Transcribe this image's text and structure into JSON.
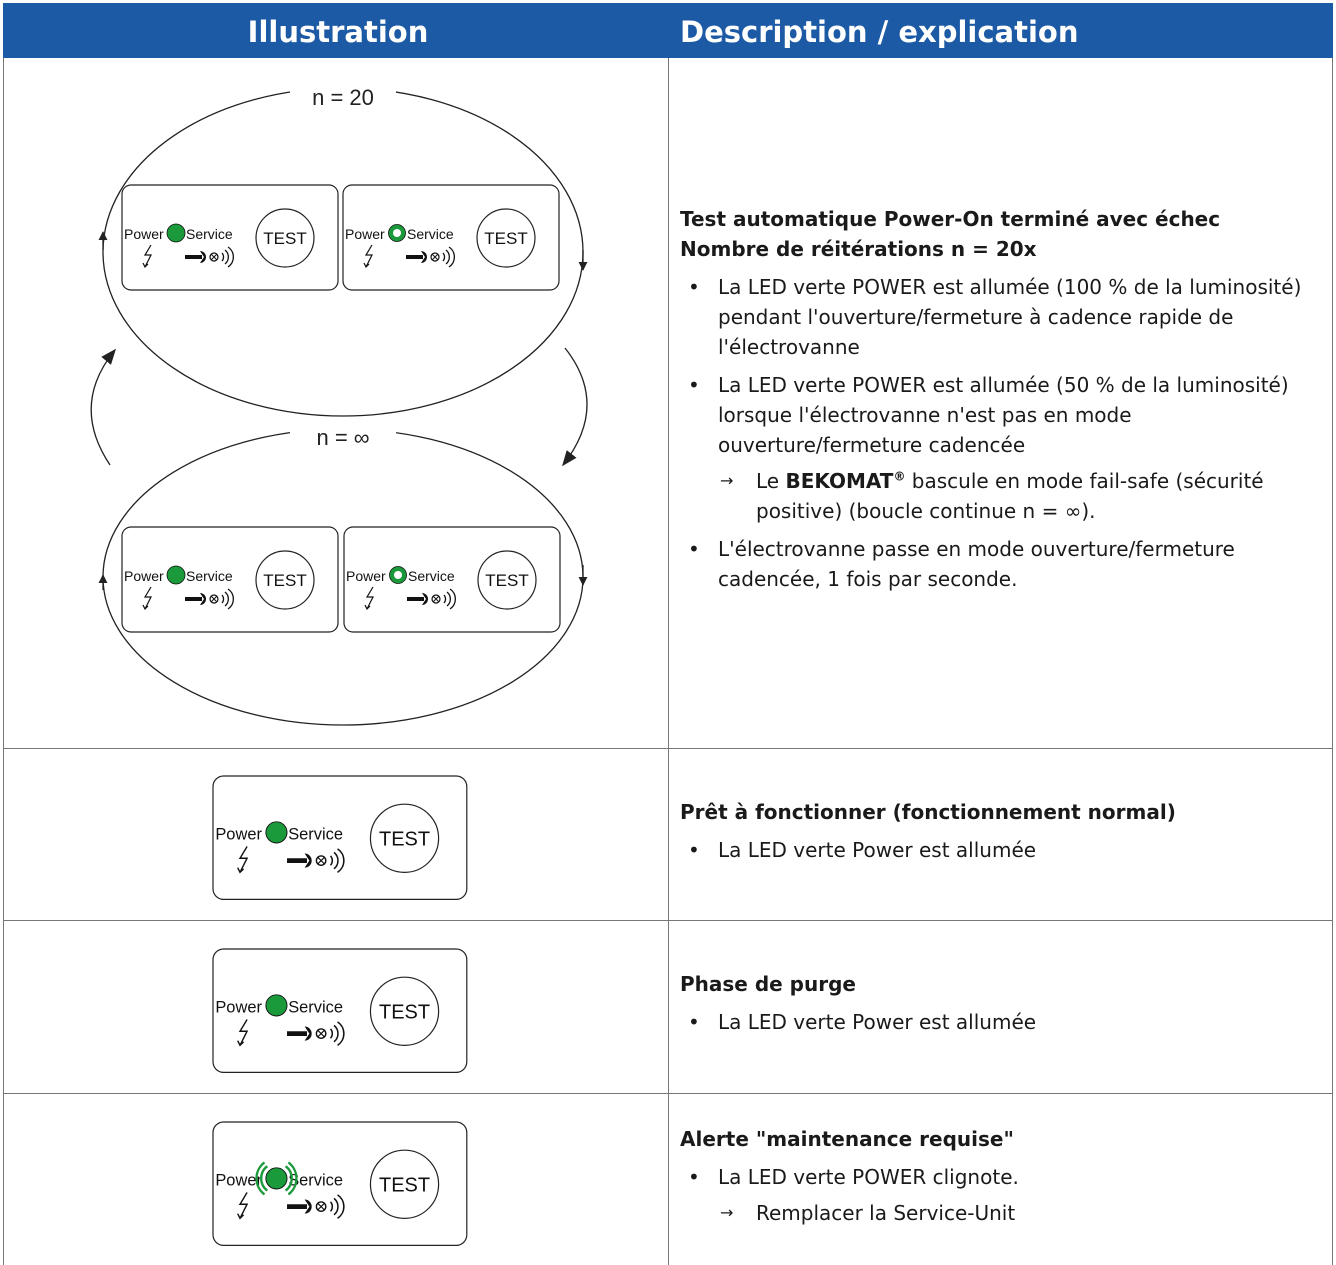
{
  "header": {
    "illustration": "Illustration",
    "description": "Description / explication"
  },
  "panel": {
    "power": "Power",
    "service": "Service",
    "test": "TEST"
  },
  "rows": [
    {
      "loop_labels": [
        "n = 20",
        "n = ∞"
      ],
      "title": [
        "Test automatique Power-On terminé avec échec",
        "Nombre de réitérations n = 20x"
      ],
      "bullets": [
        {
          "text": "La LED verte POWER est allumée (100 % de la luminosité) pendant l'ouverture/fermeture à cadence rapide de l'électrovanne"
        },
        {
          "text": "La LED verte POWER est allumée (50 % de la luminosité) lorsque l'électrovanne n'est pas en mode ouverture/fermeture cadencée",
          "sub": [
            "Le ",
            "BEKOMAT",
            "®",
            " bascule en mode fail-safe (sécurité positive) (boucle continue n = ∞)."
          ]
        },
        {
          "text": "L'électrovanne passe en mode ouverture/fermeture cadencée, 1 fois par seconde."
        }
      ]
    },
    {
      "title": [
        "Prêt à fonctionner (fonctionnement normal)"
      ],
      "bullets": [
        {
          "text": "La LED verte Power est allumée"
        }
      ]
    },
    {
      "title": [
        "Phase de purge"
      ],
      "bullets": [
        {
          "text": "La LED verte Power est allumée"
        }
      ]
    },
    {
      "title": [
        "Alerte \"maintenance requise\""
      ],
      "bullets": [
        {
          "text": "La LED verte POWER clignote.",
          "sub": [
            "Remplacer la Service-Unit"
          ]
        }
      ]
    }
  ]
}
